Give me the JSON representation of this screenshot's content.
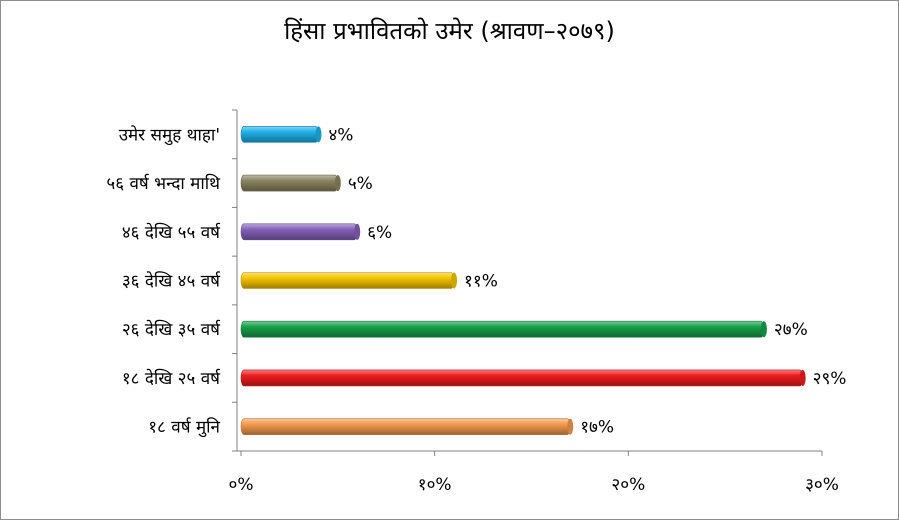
{
  "chart_data": {
    "type": "bar",
    "orientation": "horizontal",
    "title": "हिंसा प्रभावितको उमेर (श्रावण–२०७९)",
    "categories": [
      "उमेर समुह थाहा'",
      "५६ वर्ष भन्दा माथि",
      "४६ देखि ५५ वर्ष",
      "३६ देखि ४५ वर्ष",
      "२६ देखि ३५ वर्ष",
      "१८ देखि २५ वर्ष",
      "१८ वर्ष मुनि"
    ],
    "values": [
      4,
      5,
      6,
      11,
      27,
      29,
      17
    ],
    "value_labels": [
      "४%",
      "५%",
      "६%",
      "११%",
      "२७%",
      "२९%",
      "१७%"
    ],
    "colors": [
      "#1fb0e8",
      "#8b8460",
      "#8460b8",
      "#f5c400",
      "#16a04a",
      "#ee1c1c",
      "#f49a4c"
    ],
    "xlim": [
      0,
      30
    ],
    "xticks": [
      0,
      10,
      20,
      30
    ],
    "xtick_labels": [
      "०%",
      "१०%",
      "२०%",
      "३०%"
    ],
    "grid": false,
    "legend": "none"
  }
}
